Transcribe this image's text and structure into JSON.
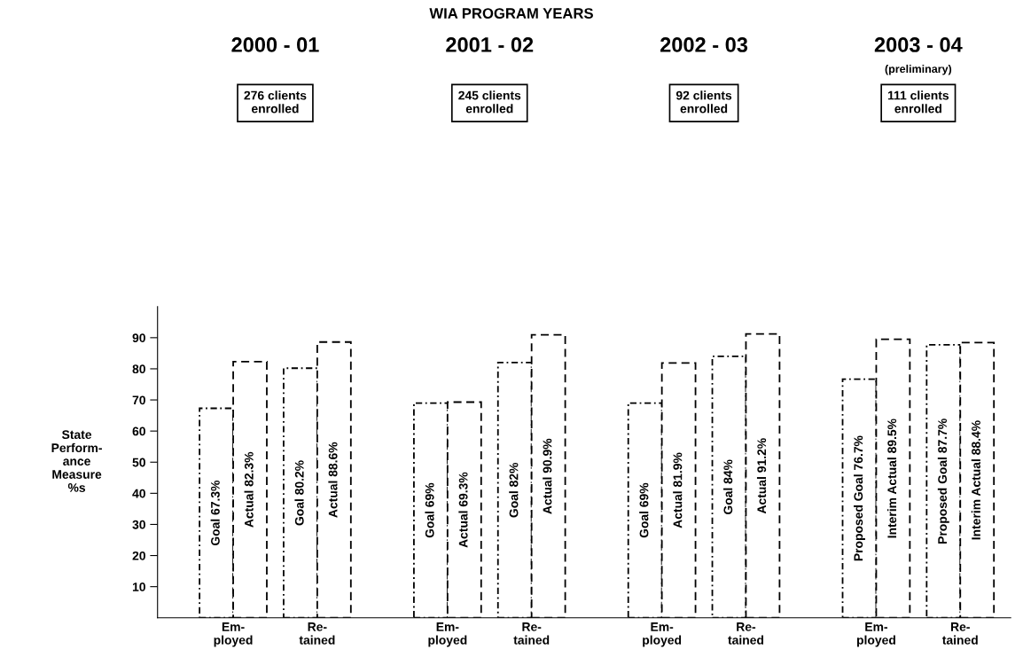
{
  "chart_data": {
    "type": "bar",
    "title": "WIA PROGRAM YEARS",
    "ylabel": "State\nPerform-\nance\nMeasure\n%s",
    "categories": [
      "Em-\nployed",
      "Re-\ntained",
      "Em-\nployed",
      "Re-\ntained",
      "Em-\nployed",
      "Re-\ntained",
      "Em-\nployed",
      "Re-\ntained"
    ],
    "series": [
      {
        "color": "#000000",
        "line_style": "dotted",
        "values": [
          67.3,
          80.2,
          69,
          82,
          69,
          84,
          76.7,
          87.7
        ],
        "value_labels": [
          "Goal 67.3%",
          "Goal 80.2%",
          "Goal 69%",
          "Goal 82%",
          "Goal 69%",
          "Goal 84%",
          "Proposed Goal 76.7%",
          "Proposed Goal 87.7%"
        ]
      },
      {
        "color": "#000000",
        "line_style": "dashed",
        "values": [
          82.3,
          88.6,
          69.3,
          90.9,
          81.9,
          91.2,
          89.5,
          88.4
        ],
        "value_labels": [
          "Actual 82.3%",
          "Actual 88.6%",
          "Actual 69.3%",
          "Actual 90.9%",
          "Actual 81.9%",
          "Actual 91.2%",
          "Interim Actual 89.5%",
          "Interim Actual 88.4%"
        ]
      }
    ],
    "annotations": [
      "2000 - 01",
      "276 clients\nenrolled",
      "2001 - 02",
      "245 clients\nenrolled",
      "2002 - 03",
      "92 clients\nenrolled",
      "2003 - 04",
      "(preliminary)",
      "111 clients\nenrolled"
    ],
    "ylim": [
      0,
      100
    ],
    "yticks": [
      10,
      20,
      30,
      40,
      50,
      60,
      70,
      80,
      90
    ],
    "grid": false,
    "legend": false
  }
}
